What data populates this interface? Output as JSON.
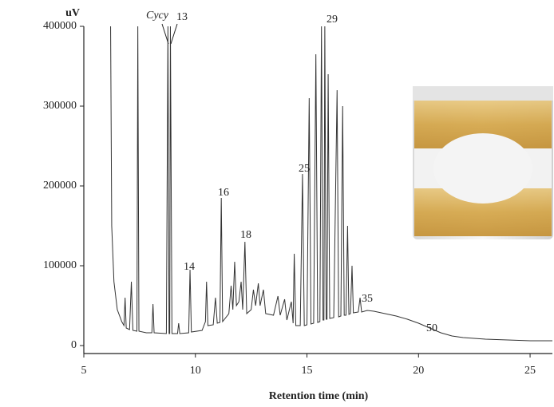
{
  "chart_data": {
    "type": "line",
    "y_label": "uV",
    "x_label": "Retention time (min)",
    "annotations": [
      "Cycy",
      "13",
      "14",
      "16",
      "18",
      "25",
      "29",
      "35",
      "50"
    ],
    "x": [
      6.2,
      6.25,
      6.35,
      6.5,
      6.7,
      6.8,
      6.85,
      6.9,
      7.05,
      7.13,
      7.2,
      7.38,
      7.42,
      7.47,
      7.8,
      8.05,
      8.1,
      8.15,
      8.7,
      8.77,
      8.82,
      8.85,
      8.88,
      8.95,
      9.2,
      9.25,
      9.3,
      9.7,
      9.76,
      9.82,
      10.3,
      10.45,
      10.5,
      10.56,
      10.8,
      10.9,
      10.98,
      11.1,
      11.16,
      11.22,
      11.5,
      11.6,
      11.68,
      11.76,
      11.84,
      11.95,
      12.05,
      12.12,
      12.22,
      12.3,
      12.5,
      12.6,
      12.7,
      12.82,
      12.9,
      13.05,
      13.15,
      13.5,
      13.7,
      13.8,
      14.0,
      14.1,
      14.3,
      14.38,
      14.43,
      14.5,
      14.7,
      14.8,
      14.88,
      15.0,
      15.1,
      15.18,
      15.3,
      15.4,
      15.48,
      15.58,
      15.65,
      15.72,
      15.76,
      15.8,
      15.86,
      15.9,
      15.95,
      16.02,
      16.2,
      16.35,
      16.42,
      16.52,
      16.6,
      16.67,
      16.75,
      16.82,
      16.88,
      16.95,
      17.02,
      17.08,
      17.3,
      17.38,
      17.45,
      17.7,
      18.0,
      18.5,
      19.0,
      19.5,
      20.0,
      20.5,
      21.0,
      21.5,
      22.0,
      23.0,
      24.0,
      25.0,
      26.0
    ],
    "series": [
      {
        "color": "#333333",
        "values": [
          400000,
          150000,
          80000,
          45000,
          30000,
          25000,
          60000,
          22000,
          20000,
          80000,
          19000,
          18000,
          400000,
          18000,
          16000,
          16000,
          52000,
          16000,
          15000,
          400000,
          15000,
          15000,
          400000,
          15000,
          15000,
          28000,
          15000,
          16000,
          95000,
          17000,
          19000,
          30000,
          80000,
          25000,
          26000,
          60000,
          28000,
          29000,
          185000,
          30000,
          40000,
          75000,
          45000,
          105000,
          50000,
          55000,
          80000,
          45000,
          130000,
          40000,
          45000,
          70000,
          50000,
          78000,
          50000,
          70000,
          40000,
          38000,
          62000,
          38000,
          58000,
          32000,
          55000,
          28000,
          115000,
          25000,
          25000,
          215000,
          25000,
          26000,
          310000,
          27000,
          28000,
          365000,
          29000,
          30000,
          400000,
          32000,
          32000,
          400000,
          33000,
          33000,
          340000,
          34000,
          35000,
          320000,
          36000,
          37000,
          300000,
          38000,
          38000,
          150000,
          39000,
          40000,
          100000,
          41000,
          42000,
          60000,
          42000,
          44000,
          43000,
          40000,
          37000,
          33000,
          28000,
          22000,
          16000,
          12000,
          10000,
          8000,
          7000,
          6000,
          6000
        ]
      }
    ],
    "xlim": [
      5,
      26
    ],
    "xticks": [
      5,
      10,
      15,
      20,
      25
    ],
    "ylim": [
      -10000,
      400000
    ],
    "yticks": [
      0,
      100000,
      200000,
      300000,
      400000
    ]
  }
}
